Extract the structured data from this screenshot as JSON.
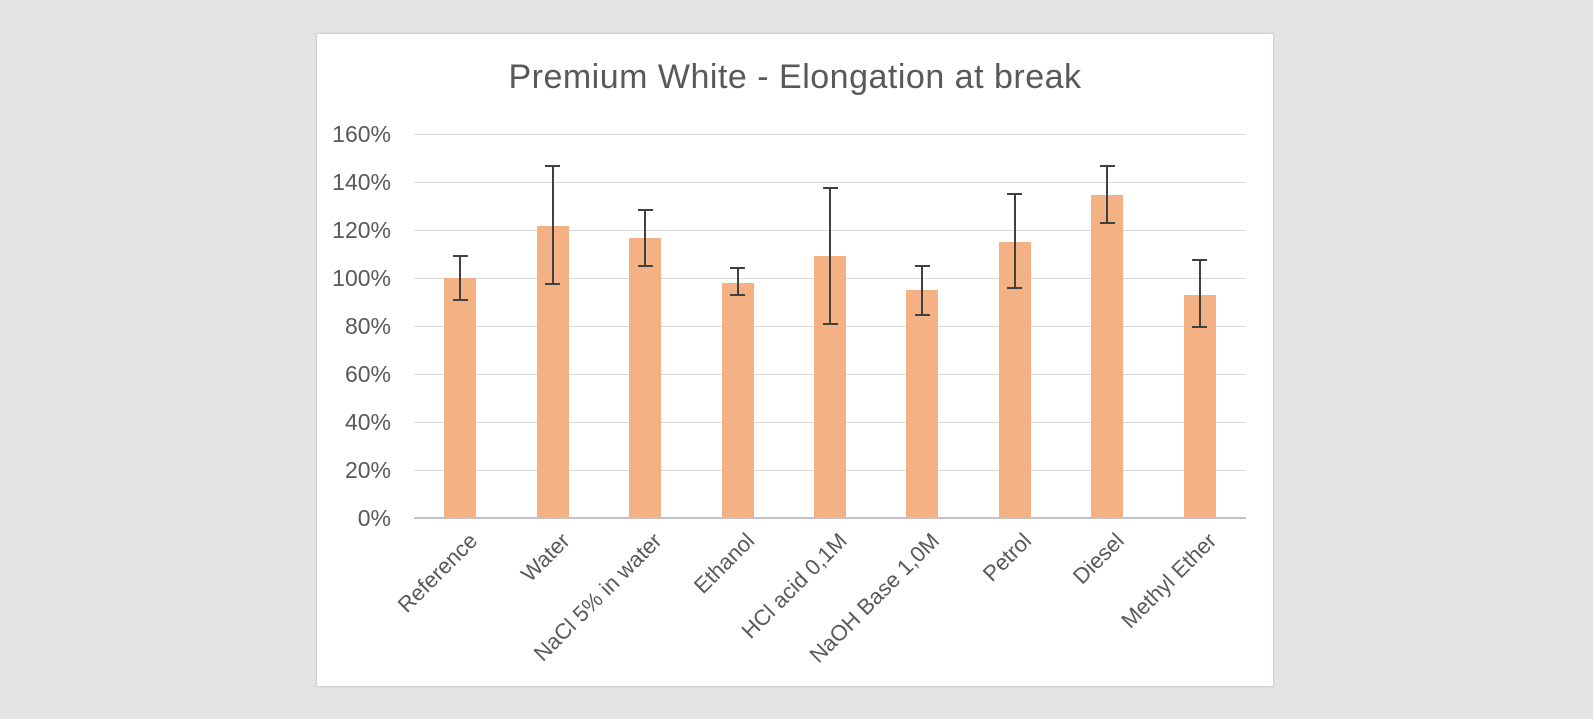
{
  "chart_data": {
    "type": "bar",
    "title": "Premium White - Elongation at break",
    "categories": [
      "Reference",
      "Water",
      "NaCl 5% in water",
      "Ethanol",
      "HCl acid 0,1M",
      "NaOH Base 1,0M",
      "Petrol",
      "Diesel",
      "Methyl Ether"
    ],
    "values": [
      100,
      121.5,
      116.5,
      98,
      109,
      95,
      115,
      134.5,
      93
    ],
    "error_low": [
      91,
      97.5,
      105,
      93,
      81,
      84.5,
      96,
      123,
      79.5
    ],
    "error_high": [
      109,
      146.5,
      128.5,
      104,
      137.5,
      105,
      135,
      146.5,
      107.5
    ],
    "xlabel": "",
    "ylabel": "",
    "ylim": [
      0,
      160
    ],
    "ytick_step": 20,
    "ytick_labels": [
      "0%",
      "20%",
      "40%",
      "60%",
      "80%",
      "100%",
      "120%",
      "140%",
      "160%"
    ],
    "grid": true,
    "legend": false,
    "bar_color": "#F4B183",
    "error_bar_color": "#404040",
    "gridline_color": "#D9D9D9",
    "axis_line_color": "#C3C3C3",
    "text_color": "#595959",
    "panel_background": "#FFFFFF",
    "page_background": "#E5E3E4"
  }
}
